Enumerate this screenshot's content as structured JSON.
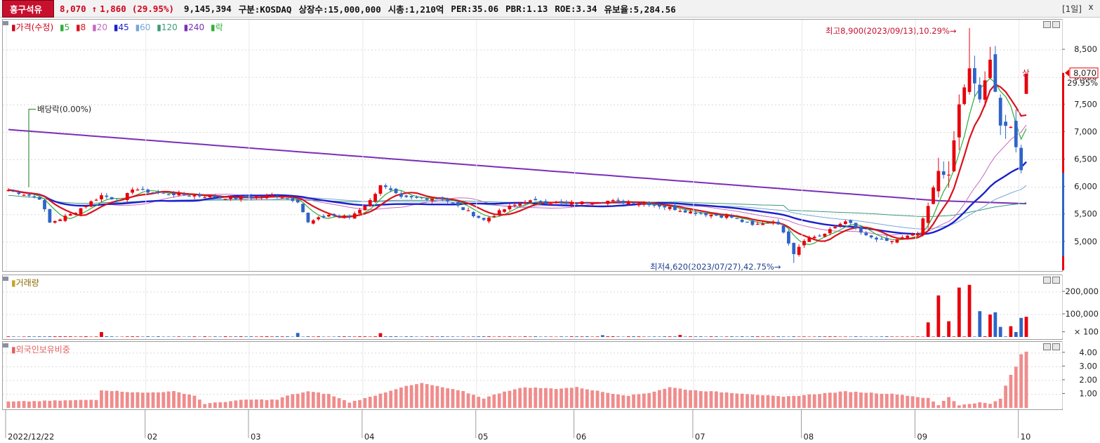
{
  "header": {
    "stock_name": "흥구석유",
    "price": "8,070",
    "arrow": "↑",
    "change": "1,860",
    "change_pct": "(29.95%)",
    "volume": "9,145,394",
    "market": "구분:KOSDAQ",
    "shares": "상장수:15,000,000",
    "market_cap": "시총:1,210억",
    "per": "PER:35.06",
    "pbr": "PBR:1.13",
    "roe": "ROE:3.34",
    "float": "유보율:5,284.56",
    "period": "[1일]",
    "close": "x"
  },
  "price_pane": {
    "legend": {
      "price": "가격(수정)",
      "ma5": "5",
      "ma8": "8",
      "ma20": "20",
      "ma45": "45",
      "ma60": "60",
      "ma120": "120",
      "ma240": "240",
      "rak": "락"
    },
    "dividend_note": "배당락(0.00%)",
    "high_note": "최고8,900(2023/09/13),10.29%→",
    "low_note": "최저4,620(2023/07/27),42.75%→",
    "upper_limit_note": "상",
    "current_price_tag": "8,070",
    "current_pct_tag": "29.95%",
    "y_ticks": [
      "8,500",
      "8,000",
      "7,500",
      "7,000",
      "6,500",
      "6,000",
      "5,500",
      "5,000"
    ]
  },
  "volume_pane": {
    "legend": "거래량",
    "y_ticks": [
      "200,000",
      "100,000",
      "× 100"
    ]
  },
  "foreign_pane": {
    "legend": "외국인보유비중",
    "y_ticks": [
      "4.00",
      "3.00",
      "2.00",
      "1.00"
    ]
  },
  "x_axis": {
    "labels": [
      "2022/12/22",
      "02",
      "03",
      "04",
      "05",
      "06",
      "07",
      "08",
      "09",
      "10"
    ]
  },
  "colors": {
    "up": "#e8000b",
    "down": "#2e64c8",
    "ma5": "#2fae3a",
    "ma8": "#d8121e",
    "ma20": "#c56ac0",
    "ma45": "#1a1fcc",
    "ma60": "#79a6d8",
    "ma120": "#3b9a7a",
    "ma240": "#7a2fb8",
    "foreign_bar": "#f08c8c"
  },
  "chart_data": {
    "type": "candlestick",
    "y_range": [
      4550,
      8950
    ],
    "key_points": [
      {
        "label": "최고",
        "date": "2023/09/13",
        "value": 8900
      },
      {
        "label": "최저",
        "date": "2023/07/27",
        "value": 4620
      },
      {
        "label": "current",
        "value": 8070,
        "change": 1860,
        "pct": 29.95
      }
    ],
    "volume_y_range": [
      0,
      250000
    ],
    "foreign_y_range": [
      0,
      4.4
    ],
    "foreign_latest": 4.1
  }
}
